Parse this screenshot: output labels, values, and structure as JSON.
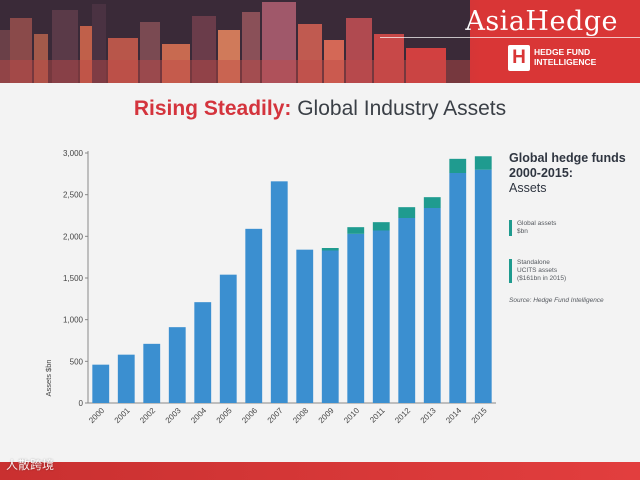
{
  "header": {
    "brand": "AsiaHedge",
    "brand_sub_line1": "HEDGE FUND",
    "brand_sub_line2": "INTELLIGENCE",
    "logo_letter": "H"
  },
  "title": {
    "highlight": "Rising Steadily:",
    "rest": " Global Industry Assets"
  },
  "legend": {
    "title": "Global hedge funds 2000-2015:",
    "subtitle": "Assets",
    "items": [
      {
        "line1": "Global assets",
        "line2": "$bn",
        "line3": ""
      },
      {
        "line1": "Standalone",
        "line2": "UCITS assets",
        "line3": "($161bn in 2015)"
      }
    ],
    "source": "Source: Hedge Fund Intelligence"
  },
  "watermark": "人散跨境",
  "colors": {
    "global": "#3b8fd0",
    "ucits": "#1f9b8f",
    "axis": "#888888",
    "title_accent": "#d4343d"
  },
  "chart_data": {
    "type": "bar",
    "stacked": true,
    "ylabel": "Assets $bn",
    "ylim": [
      0,
      3000
    ],
    "yticks": [
      0,
      500,
      1000,
      1500,
      2000,
      2500,
      3000
    ],
    "ytick_labels": [
      "0",
      "500",
      "1,000",
      "1,500",
      "2,000",
      "2,500",
      "3,000"
    ],
    "categories": [
      "2000",
      "2001",
      "2002",
      "2003",
      "2004",
      "2005",
      "2006",
      "2007",
      "2008",
      "2009",
      "2010",
      "2011",
      "2012",
      "2013",
      "2014",
      "2015"
    ],
    "series": [
      {
        "name": "Global assets",
        "values": [
          460,
          580,
          710,
          910,
          1210,
          1540,
          2090,
          2660,
          1840,
          1830,
          2030,
          2070,
          2220,
          2340,
          2760,
          2800
        ]
      },
      {
        "name": "Standalone UCITS assets",
        "values": [
          0,
          0,
          0,
          0,
          0,
          0,
          0,
          0,
          0,
          30,
          80,
          100,
          130,
          130,
          170,
          161
        ]
      }
    ],
    "grid": false,
    "legend_position": "right"
  }
}
